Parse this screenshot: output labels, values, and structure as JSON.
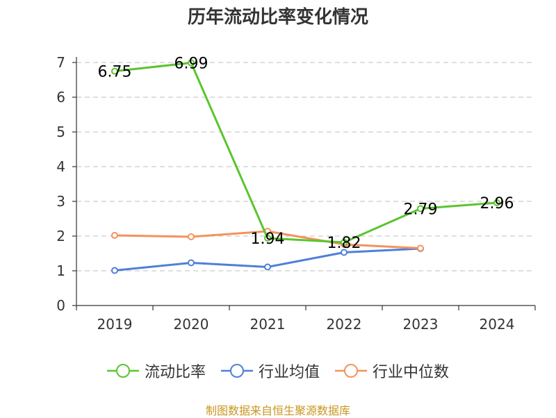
{
  "chart_data": {
    "type": "line",
    "title": "历年流动比率变化情况",
    "categories": [
      "2019",
      "2020",
      "2021",
      "2022",
      "2023",
      "2024"
    ],
    "ylim": [
      0,
      7
    ],
    "yticks": [
      "0",
      "1",
      "2",
      "3",
      "4",
      "5",
      "6",
      "7"
    ],
    "grid": true,
    "legend_position": "bottom",
    "series": [
      {
        "name": "流动比率",
        "color": "#5bc42e",
        "values": [
          6.75,
          6.99,
          1.94,
          1.82,
          2.79,
          2.96
        ],
        "labels": [
          "6.75",
          "6.99",
          "1.94",
          "1.82",
          "2.79",
          "2.96"
        ]
      },
      {
        "name": "行业均值",
        "color": "#4f7fd9",
        "values": [
          1.01,
          1.23,
          1.11,
          1.53,
          1.64,
          null
        ]
      },
      {
        "name": "行业中位数",
        "color": "#f4925b",
        "values": [
          2.02,
          1.98,
          2.14,
          1.76,
          1.65,
          null
        ]
      }
    ]
  },
  "source": "制图数据来自恒生聚源数据库"
}
